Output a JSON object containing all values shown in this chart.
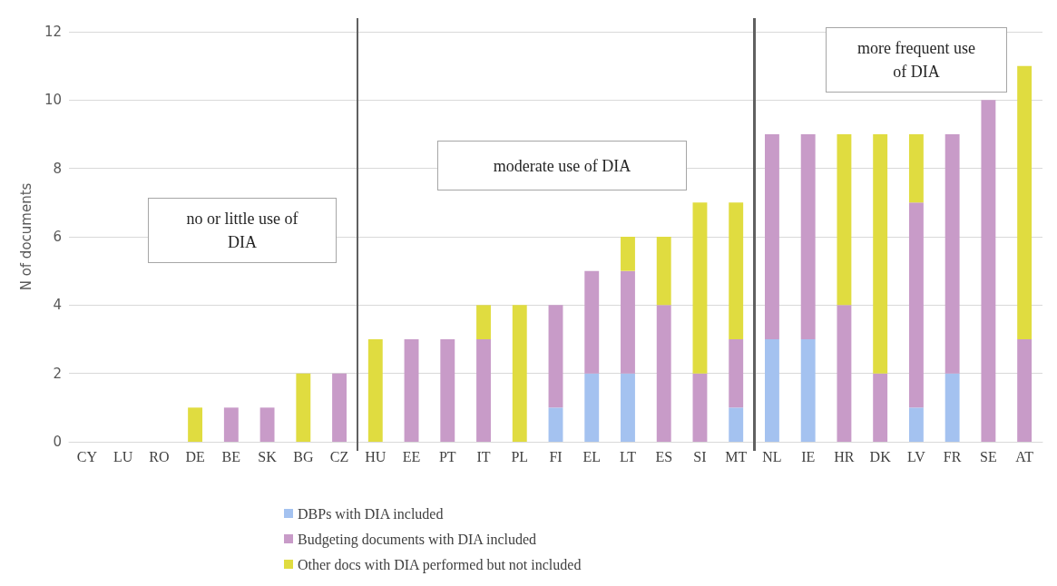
{
  "chart_data": {
    "type": "bar",
    "stacked": true,
    "ylabel": "N of documents",
    "categories": [
      "CY",
      "LU",
      "RO",
      "DE",
      "BE",
      "SK",
      "BG",
      "CZ",
      "HU",
      "EE",
      "PT",
      "IT",
      "PL",
      "FI",
      "EL",
      "LT",
      "ES",
      "SI",
      "MT",
      "NL",
      "IE",
      "HR",
      "DK",
      "LV",
      "FR",
      "SE",
      "AT"
    ],
    "series": [
      {
        "name": "DBPs with DIA included",
        "color": "#a4c2f0",
        "values": [
          0,
          0,
          0,
          0,
          0,
          0,
          0,
          0,
          0,
          0,
          0,
          0,
          0,
          1,
          2,
          2,
          0,
          0,
          1,
          3,
          3,
          0,
          0,
          1,
          2,
          0,
          0
        ]
      },
      {
        "name": "Budgeting documents with DIA included",
        "color": "#c89bc8",
        "values": [
          0,
          0,
          0,
          0,
          1,
          1,
          0,
          2,
          0,
          3,
          3,
          3,
          0,
          3,
          3,
          3,
          4,
          2,
          2,
          6,
          6,
          4,
          2,
          6,
          7,
          10,
          3
        ]
      },
      {
        "name": "Other docs with DIA performed but not included",
        "color": "#e0dc40",
        "values": [
          0,
          0,
          0,
          1,
          0,
          0,
          2,
          0,
          3,
          0,
          0,
          1,
          4,
          0,
          0,
          1,
          2,
          5,
          4,
          0,
          0,
          5,
          7,
          2,
          0,
          0,
          8
        ]
      }
    ],
    "ylim": [
      0,
      12
    ],
    "yticks": [
      0,
      2,
      4,
      6,
      8,
      10,
      12
    ],
    "grid": "y",
    "legend": "bottom",
    "annotations": [
      "no or little use of DIA",
      "moderate use of DIA",
      "more frequent use of DIA"
    ]
  }
}
